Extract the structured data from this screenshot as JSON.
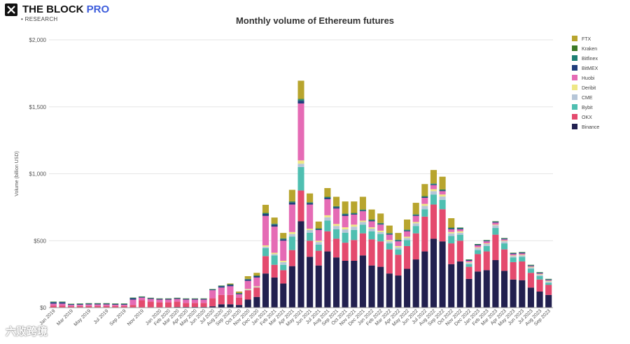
{
  "brand": {
    "name_main": "THE BLOCK ",
    "name_pro": "PRO",
    "sub": "• RESEARCH"
  },
  "watermark": "六败跨境",
  "colors": {
    "FTX": "#b8a52e",
    "Kraken": "#3d7a28",
    "Bitfinex": "#1e7f73",
    "BitMEX": "#203d7c",
    "Huobi": "#e56bb5",
    "Deribit": "#eee785",
    "CME": "#b6c6d8",
    "Bybit": "#4fbfb1",
    "OKX": "#e44a6e",
    "Binance": "#22204f"
  },
  "chart_data": {
    "type": "bar",
    "stacked": true,
    "title": "Monthly volume of Ethereum futures",
    "xlabel": "",
    "ylabel": "Volume (billion USD)",
    "ylim": [
      0,
      2000
    ],
    "yticks": [
      0,
      500,
      1000,
      1500,
      2000
    ],
    "ytick_labels": [
      "$0",
      "$500",
      "$1,000",
      "$1,500",
      "$2,000"
    ],
    "grid": true,
    "legend_position": "right",
    "categories": [
      "Jan 2019",
      "Feb 2019",
      "Mar 2019",
      "Apr 2019",
      "May 2019",
      "Jun 2019",
      "Jul 2019",
      "Aug 2019",
      "Sep 2019",
      "Oct 2019",
      "Nov 2019",
      "Dec 2019",
      "Jan 2020",
      "Feb 2020",
      "Mar 2020",
      "Apr 2020",
      "May 2020",
      "Jun 2020",
      "Jul 2020",
      "Aug 2020",
      "Sep 2020",
      "Oct 2020",
      "Nov 2020",
      "Dec 2020",
      "Jan 2021",
      "Feb 2021",
      "Mar 2021",
      "Apr 2021",
      "May 2021",
      "Jun 2021",
      "Jul 2021",
      "Aug 2021",
      "Sep 2021",
      "Oct 2021",
      "Nov 2021",
      "Dec 2021",
      "Jan 2022",
      "Feb 2022",
      "Mar 2022",
      "Apr 2022",
      "May 2022",
      "Jun 2022",
      "Jul 2022",
      "Aug 2022",
      "Sep 2022",
      "Oct 2022",
      "Nov 2022",
      "Dec 2022",
      "Jan 2023",
      "Feb 2023",
      "Mar 2023",
      "Apr 2023",
      "May 2023",
      "Jun 2023",
      "Jul 2023",
      "Aug 2023",
      "Sep 2023"
    ],
    "tick_labels": [
      "Jan 2019",
      "Mar 2019",
      "May 2019",
      "Jul 2019",
      "Sep 2019",
      "Nov 2019",
      "Jan 2020",
      "Feb 2020",
      "Mar 2020",
      "Apr 2020",
      "May 2020",
      "Jun 2020",
      "Jul 2020",
      "Aug 2020",
      "Sep 2020",
      "Oct 2020",
      "Nov 2020",
      "Dec 2020",
      "Jan 2021",
      "Feb 2021",
      "Mar 2021",
      "Apr 2021",
      "May 2021",
      "Jun 2021",
      "Jul 2021",
      "Aug 2021",
      "Sep 2021",
      "Oct 2021",
      "Nov 2021",
      "Dec 2021",
      "Jan 2022",
      "Feb 2022",
      "Mar 2022",
      "Apr 2022",
      "May 2022",
      "Jun 2022",
      "Jul 2022",
      "Aug 2022",
      "Sep 2022",
      "Oct 2022",
      "Nov 2022",
      "Dec 2022",
      "Jan 2023",
      "Feb 2023",
      "Mar 2023",
      "Apr 2023",
      "May 2023",
      "Jun 2023",
      "Jul 2023",
      "Aug 2023",
      "Sep 2023"
    ],
    "legend": [
      "FTX",
      "Kraken",
      "Bitfinex",
      "BitMEX",
      "Huobi",
      "Deribit",
      "CME",
      "Bybit",
      "OKX",
      "Binance"
    ],
    "series": [
      {
        "name": "Binance",
        "values": [
          0,
          0,
          0,
          0,
          0,
          0,
          0,
          0,
          0,
          0,
          0,
          0,
          0,
          0,
          5,
          5,
          5,
          5,
          10,
          25,
          25,
          20,
          60,
          80,
          255,
          225,
          180,
          310,
          645,
          380,
          315,
          420,
          375,
          350,
          350,
          390,
          315,
          305,
          255,
          240,
          290,
          360,
          420,
          515,
          495,
          325,
          345,
          215,
          270,
          280,
          355,
          275,
          210,
          205,
          150,
          120,
          95
        ]
      },
      {
        "name": "OKX",
        "values": [
          15,
          15,
          10,
          12,
          12,
          12,
          12,
          12,
          12,
          20,
          55,
          45,
          40,
          40,
          40,
          30,
          30,
          30,
          60,
          70,
          70,
          55,
          70,
          70,
          130,
          95,
          100,
          120,
          230,
          120,
          110,
          150,
          140,
          135,
          155,
          165,
          195,
          190,
          180,
          155,
          170,
          195,
          260,
          255,
          240,
          155,
          155,
          90,
          130,
          140,
          190,
          160,
          130,
          140,
          110,
          90,
          75
        ]
      },
      {
        "name": "Bybit",
        "values": [
          0,
          0,
          0,
          0,
          0,
          0,
          0,
          0,
          0,
          0,
          0,
          0,
          0,
          0,
          0,
          0,
          0,
          0,
          0,
          0,
          0,
          0,
          0,
          0,
          60,
          70,
          40,
          100,
          175,
          60,
          45,
          80,
          70,
          75,
          75,
          65,
          60,
          55,
          45,
          40,
          45,
          55,
          55,
          75,
          70,
          55,
          45,
          20,
          30,
          40,
          50,
          45,
          35,
          35,
          30,
          25,
          15
        ]
      },
      {
        "name": "CME",
        "values": [
          0,
          0,
          0,
          0,
          0,
          0,
          0,
          0,
          0,
          0,
          0,
          0,
          0,
          0,
          0,
          0,
          0,
          0,
          0,
          0,
          0,
          0,
          5,
          5,
          10,
          10,
          20,
          20,
          25,
          20,
          20,
          25,
          25,
          25,
          25,
          20,
          20,
          15,
          15,
          15,
          15,
          20,
          25,
          25,
          25,
          20,
          15,
          10,
          15,
          15,
          20,
          15,
          10,
          10,
          10,
          10,
          10
        ]
      },
      {
        "name": "Deribit",
        "values": [
          0,
          0,
          0,
          0,
          0,
          0,
          0,
          0,
          0,
          0,
          0,
          0,
          0,
          0,
          0,
          0,
          0,
          0,
          0,
          0,
          0,
          0,
          5,
          5,
          10,
          10,
          10,
          15,
          25,
          10,
          10,
          15,
          15,
          15,
          15,
          10,
          10,
          10,
          10,
          10,
          10,
          10,
          15,
          15,
          15,
          10,
          10,
          5,
          5,
          5,
          5,
          5,
          5,
          5,
          5,
          5,
          5
        ]
      },
      {
        "name": "Huobi",
        "values": [
          15,
          15,
          10,
          10,
          12,
          12,
          12,
          10,
          10,
          40,
          20,
          20,
          20,
          20,
          20,
          25,
          25,
          25,
          60,
          55,
          65,
          25,
          60,
          65,
          220,
          195,
          150,
          205,
          425,
          180,
          80,
          120,
          115,
          85,
          75,
          70,
          45,
          45,
          40,
          35,
          40,
          45,
          45,
          30,
          25,
          20,
          15,
          10,
          15,
          15,
          15,
          10,
          10,
          10,
          5,
          5,
          5
        ]
      },
      {
        "name": "BitMEX",
        "values": [
          10,
          10,
          5,
          5,
          5,
          5,
          5,
          5,
          5,
          10,
          5,
          5,
          5,
          5,
          5,
          5,
          5,
          5,
          5,
          10,
          10,
          5,
          10,
          10,
          15,
          15,
          10,
          15,
          20,
          10,
          5,
          10,
          10,
          10,
          5,
          5,
          5,
          5,
          5,
          5,
          5,
          5,
          5,
          5,
          5,
          5,
          5,
          5,
          5,
          5,
          5,
          5,
          5,
          5,
          5,
          5,
          5
        ]
      },
      {
        "name": "Bitfinex",
        "values": [
          3,
          3,
          2,
          2,
          2,
          2,
          2,
          2,
          2,
          3,
          2,
          2,
          2,
          2,
          2,
          2,
          2,
          2,
          2,
          3,
          3,
          3,
          3,
          3,
          5,
          5,
          5,
          5,
          10,
          5,
          5,
          5,
          5,
          5,
          5,
          5,
          5,
          5,
          5,
          5,
          5,
          5,
          5,
          5,
          5,
          5,
          5,
          3,
          3,
          3,
          3,
          3,
          3,
          3,
          3,
          3,
          3
        ]
      },
      {
        "name": "Kraken",
        "values": [
          2,
          2,
          2,
          2,
          2,
          2,
          2,
          2,
          2,
          2,
          2,
          2,
          2,
          2,
          2,
          2,
          2,
          2,
          2,
          2,
          2,
          2,
          2,
          2,
          3,
          3,
          3,
          5,
          5,
          3,
          3,
          3,
          3,
          3,
          3,
          3,
          3,
          3,
          3,
          3,
          3,
          3,
          3,
          3,
          3,
          3,
          3,
          2,
          2,
          2,
          2,
          2,
          2,
          2,
          2,
          2,
          2
        ]
      },
      {
        "name": "FTX",
        "values": [
          0,
          0,
          0,
          0,
          0,
          0,
          0,
          0,
          0,
          0,
          0,
          0,
          0,
          0,
          0,
          0,
          0,
          0,
          0,
          0,
          5,
          10,
          20,
          20,
          60,
          45,
          40,
          85,
          135,
          65,
          50,
          65,
          70,
          90,
          85,
          95,
          75,
          70,
          55,
          50,
          75,
          85,
          90,
          100,
          95,
          70,
          0,
          0,
          0,
          0,
          0,
          0,
          0,
          0,
          0,
          0,
          0
        ]
      }
    ]
  }
}
